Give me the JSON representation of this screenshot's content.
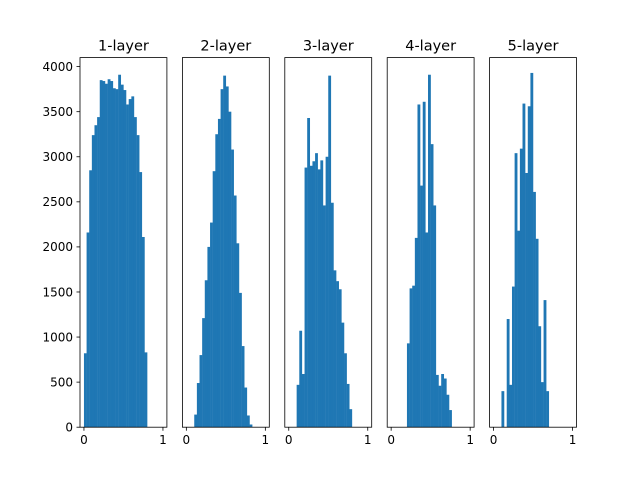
{
  "chart_data": [
    {
      "type": "bar",
      "title": "1-layer",
      "xlim": [
        -0.05,
        1.05
      ],
      "ylim": [
        0,
        4100
      ],
      "bin_width": 0.033333,
      "bin_start": 0,
      "values": [
        820,
        2160,
        2850,
        3240,
        3350,
        3440,
        3850,
        3840,
        3810,
        3860,
        3840,
        3760,
        3750,
        3910,
        3800,
        3740,
        3580,
        3640,
        3670,
        3440,
        3240,
        2830,
        2110,
        830
      ],
      "xticks": [
        "0",
        "1"
      ],
      "yticks": [
        "0",
        "500",
        "1000",
        "1500",
        "2000",
        "2500",
        "3000",
        "3500",
        "4000"
      ]
    },
    {
      "type": "bar",
      "title": "2-layer",
      "xlim": [
        -0.05,
        1.05
      ],
      "ylim": [
        0,
        4100
      ],
      "bin_width": 0.033333,
      "bin_start": 0.1,
      "values": [
        140,
        490,
        800,
        1210,
        1630,
        2000,
        2270,
        2840,
        3250,
        3420,
        3750,
        3900,
        3780,
        3500,
        3080,
        2570,
        2040,
        1490,
        900,
        440,
        130,
        30
      ],
      "xticks": [
        "0",
        "1"
      ],
      "yticks": []
    },
    {
      "type": "bar",
      "title": "3-layer",
      "xlim": [
        -0.05,
        1.05
      ],
      "ylim": [
        0,
        4100
      ],
      "bin_width": 0.033333,
      "bin_start": 0.1,
      "values": [
        470,
        1070,
        590,
        2880,
        3430,
        2900,
        2950,
        3040,
        2860,
        2960,
        2460,
        3000,
        3900,
        2490,
        1740,
        1620,
        1530,
        1160,
        820,
        480,
        200
      ],
      "xticks": [
        "0",
        "1"
      ],
      "yticks": []
    },
    {
      "type": "bar",
      "title": "4-layer",
      "xlim": [
        -0.05,
        1.05
      ],
      "ylim": [
        0,
        4100
      ],
      "bin_width": 0.033333,
      "bin_start": 0.2,
      "values": [
        930,
        1540,
        1570,
        2100,
        3580,
        2680,
        3610,
        2160,
        3910,
        3140,
        2460,
        580,
        460,
        590,
        540,
        360,
        190
      ],
      "xticks": [
        "0",
        "1"
      ],
      "yticks": []
    },
    {
      "type": "bar",
      "title": "5-layer",
      "xlim": [
        -0.05,
        1.05
      ],
      "ylim": [
        0,
        4100
      ],
      "bin_width": 0.033333,
      "bin_start": 0.1,
      "values": [
        400,
        0,
        1200,
        470,
        1560,
        3040,
        2180,
        3090,
        3590,
        2820,
        3560,
        3930,
        2610,
        2090,
        1120,
        500,
        1410,
        400
      ],
      "xticks": [
        "0",
        "1"
      ],
      "yticks": []
    }
  ],
  "colors": {
    "bar": "#1f77b4",
    "axes": "#000000",
    "background": "#ffffff"
  }
}
